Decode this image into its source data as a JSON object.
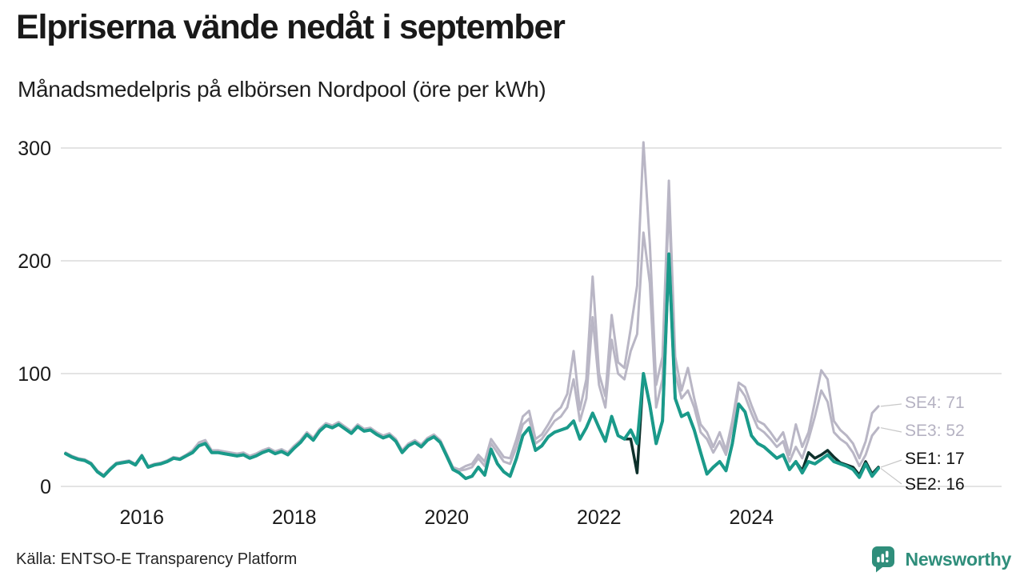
{
  "chart_data": {
    "type": "line",
    "title": "Elpriserna vände nedåt i september",
    "subtitle": "Månadsmedelpris på elbörsen Nordpool (öre per kWh)",
    "x_start": "2015-01",
    "x_end": "2025-09",
    "x_frequency": "monthly",
    "x_tick_labels": [
      "2016",
      "2018",
      "2020",
      "2022",
      "2024"
    ],
    "x_tick_years": [
      2016,
      2018,
      2020,
      2022,
      2024
    ],
    "y_ticks": [
      0,
      100,
      200,
      300
    ],
    "ylim": [
      0,
      310
    ],
    "grid": "horizontal",
    "legend_position": "end-of-line-labels",
    "colors": {
      "grid": "#dcdcdc",
      "axis_text": "#1a1a1a",
      "leader": "#c8c8c8",
      "gray_series": "#b9b6c5",
      "teal_series": "#1a9a8a",
      "dark_series": "#0d302b"
    },
    "series": [
      {
        "name": "SE4",
        "color": "#b9b6c5",
        "width": 3,
        "values": [
          30,
          27,
          25,
          24,
          21,
          14,
          10,
          16,
          21,
          22,
          23,
          20,
          28,
          18,
          20,
          21,
          23,
          26,
          25,
          28,
          32,
          39,
          41,
          32,
          32,
          31,
          30,
          29,
          30,
          27,
          29,
          32,
          34,
          31,
          33,
          30,
          36,
          41,
          48,
          43,
          51,
          56,
          54,
          57,
          53,
          49,
          55,
          51,
          52,
          48,
          45,
          47,
          42,
          32,
          38,
          41,
          37,
          43,
          46,
          41,
          29,
          17,
          15,
          18,
          20,
          28,
          22,
          42,
          34,
          26,
          25,
          42,
          62,
          67,
          42,
          46,
          55,
          65,
          70,
          82,
          120,
          68,
          95,
          186,
          100,
          80,
          152,
          110,
          105,
          140,
          178,
          305,
          215,
          90,
          115,
          271,
          115,
          85,
          105,
          78,
          55,
          48,
          35,
          48,
          32,
          58,
          92,
          88,
          72,
          58,
          55,
          48,
          40,
          48,
          28,
          55,
          35,
          48,
          75,
          103,
          95,
          58,
          50,
          45,
          38,
          25,
          40,
          65,
          71
        ]
      },
      {
        "name": "SE3",
        "color": "#b9b6c5",
        "width": 3,
        "values": [
          29,
          26,
          24,
          23,
          20,
          13,
          9,
          15,
          20,
          21,
          22,
          19,
          27,
          17,
          19,
          20,
          22,
          25,
          24,
          27,
          31,
          38,
          40,
          31,
          31,
          30,
          29,
          28,
          29,
          26,
          28,
          31,
          33,
          30,
          32,
          29,
          35,
          40,
          47,
          42,
          50,
          55,
          53,
          56,
          52,
          48,
          54,
          50,
          51,
          47,
          44,
          46,
          41,
          31,
          37,
          40,
          36,
          42,
          45,
          40,
          28,
          16,
          14,
          15,
          17,
          25,
          18,
          38,
          30,
          22,
          20,
          35,
          55,
          60,
          38,
          42,
          50,
          58,
          62,
          70,
          95,
          58,
          78,
          150,
          90,
          70,
          130,
          100,
          95,
          120,
          135,
          225,
          180,
          70,
          95,
          255,
          100,
          78,
          85,
          70,
          48,
          42,
          30,
          40,
          28,
          52,
          88,
          80,
          65,
          52,
          48,
          42,
          35,
          40,
          22,
          35,
          25,
          42,
          62,
          85,
          75,
          48,
          42,
          38,
          30,
          18,
          28,
          45,
          52
        ]
      },
      {
        "name": "SE1",
        "color": "#0d302b",
        "width": 3.5,
        "values": [
          29,
          26,
          24,
          23,
          20,
          13,
          9,
          15,
          20,
          21,
          22,
          19,
          27,
          17,
          19,
          20,
          22,
          25,
          24,
          27,
          30,
          36,
          38,
          30,
          30,
          29,
          28,
          27,
          28,
          25,
          27,
          30,
          32,
          29,
          31,
          28,
          34,
          39,
          46,
          41,
          49,
          54,
          52,
          55,
          51,
          47,
          53,
          49,
          50,
          46,
          43,
          45,
          40,
          30,
          36,
          39,
          35,
          41,
          44,
          39,
          27,
          15,
          12,
          7,
          9,
          17,
          10,
          33,
          20,
          13,
          9,
          25,
          45,
          52,
          32,
          36,
          44,
          48,
          50,
          52,
          58,
          42,
          52,
          65,
          52,
          40,
          62,
          45,
          42,
          42,
          12,
          100,
          72,
          38,
          58,
          206,
          78,
          62,
          65,
          50,
          30,
          11,
          17,
          22,
          14,
          38,
          73,
          66,
          45,
          38,
          35,
          30,
          25,
          28,
          15,
          22,
          14,
          30,
          25,
          28,
          32,
          26,
          21,
          19,
          17,
          10,
          22,
          11,
          17
        ]
      },
      {
        "name": "SE2",
        "color": "#1a9a8a",
        "width": 4,
        "values": [
          29,
          26,
          24,
          23,
          20,
          13,
          9,
          15,
          20,
          21,
          22,
          19,
          27,
          17,
          19,
          20,
          22,
          25,
          24,
          27,
          30,
          36,
          38,
          30,
          30,
          29,
          28,
          27,
          28,
          25,
          27,
          30,
          32,
          29,
          31,
          28,
          34,
          39,
          46,
          41,
          49,
          54,
          52,
          55,
          51,
          47,
          53,
          49,
          50,
          46,
          43,
          45,
          40,
          30,
          36,
          39,
          35,
          41,
          44,
          39,
          27,
          15,
          12,
          7,
          9,
          17,
          10,
          33,
          20,
          13,
          9,
          25,
          45,
          52,
          32,
          36,
          44,
          48,
          50,
          52,
          58,
          42,
          52,
          65,
          52,
          40,
          62,
          45,
          42,
          50,
          38,
          100,
          72,
          38,
          58,
          206,
          78,
          62,
          65,
          50,
          30,
          11,
          17,
          22,
          14,
          38,
          73,
          66,
          45,
          38,
          35,
          30,
          25,
          28,
          15,
          22,
          12,
          22,
          20,
          24,
          28,
          22,
          20,
          18,
          15,
          8,
          20,
          9,
          16
        ]
      }
    ],
    "end_labels": [
      {
        "text": "SE4: 71",
        "value": 71,
        "color": "#b5b2c2"
      },
      {
        "text": "SE3: 52",
        "value": 52,
        "color": "#b5b2c2"
      },
      {
        "text": "SE1: 17",
        "value": 17,
        "color": "#111111"
      },
      {
        "text": "SE2: 16",
        "value": 16,
        "color": "#111111"
      }
    ]
  },
  "footer": {
    "source": "Källa: ENTSO-E Transparency Platform",
    "brand": "Newsworthy"
  }
}
